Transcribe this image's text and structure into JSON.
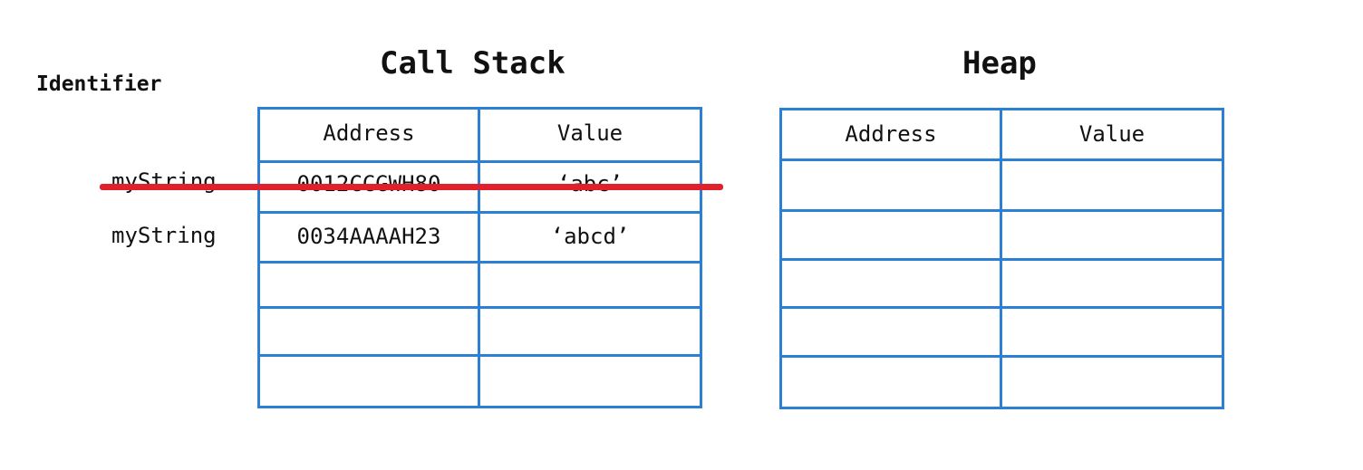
{
  "titles": {
    "stack": "Call Stack",
    "heap": "Heap",
    "identifier": "Identifier"
  },
  "identifiers": [
    "myString",
    "myString"
  ],
  "stack_table": {
    "headers": [
      "Address",
      "Value"
    ],
    "rows": [
      [
        "0012CCGWH80",
        "‘abc’"
      ],
      [
        "0034AAAAH23",
        "‘abcd’"
      ],
      [
        "",
        ""
      ],
      [
        "",
        ""
      ],
      [
        "",
        ""
      ]
    ],
    "crossed_out_row_index": 0
  },
  "heap_table": {
    "headers": [
      "Address",
      "Value"
    ],
    "rows": [
      [
        "",
        ""
      ],
      [
        "",
        ""
      ],
      [
        "",
        ""
      ],
      [
        "",
        ""
      ],
      [
        "",
        ""
      ]
    ]
  },
  "colors": {
    "table_border": "#2b7fd4",
    "strike_line": "#e0202a"
  }
}
